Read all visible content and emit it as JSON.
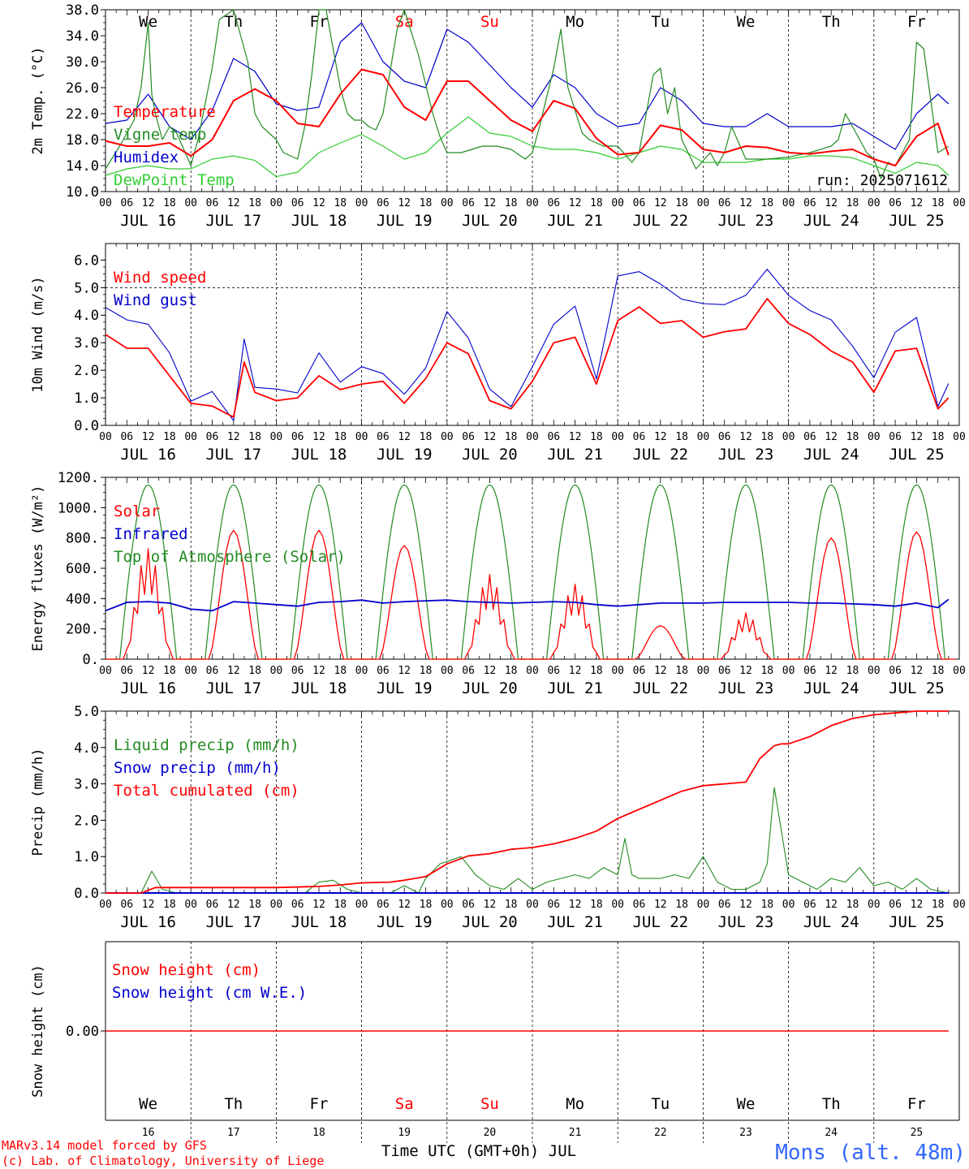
{
  "chart_data": [
    {
      "type": "line",
      "ylabel": "2m Temp. (°C)",
      "ylim": [
        10,
        38
      ],
      "yticks": [
        "38.0",
        "34.0",
        "30.0",
        "26.0",
        "22.0",
        "18.0",
        "14.0",
        "10.0"
      ],
      "x_unit": "hours since JUL 16 00 UTC",
      "weekdays": [
        {
          "label": "We",
          "color": "#000000"
        },
        {
          "label": "Th",
          "color": "#000000"
        },
        {
          "label": "Fr",
          "color": "#000000"
        },
        {
          "label": "Sa",
          "color": "#ff0000"
        },
        {
          "label": "Su",
          "color": "#ff0000"
        },
        {
          "label": "Mo",
          "color": "#000000"
        },
        {
          "label": "Tu",
          "color": "#000000"
        },
        {
          "label": "We",
          "color": "#000000"
        },
        {
          "label": "Th",
          "color": "#000000"
        },
        {
          "label": "Fr",
          "color": "#000000"
        }
      ],
      "annotation": "run: 2025071612",
      "series": [
        {
          "name": "Temperature",
          "color": "#ff0000",
          "x": [
            0,
            6,
            12,
            18,
            24,
            30,
            36,
            42,
            48,
            54,
            60,
            66,
            72,
            78,
            84,
            90,
            96,
            102,
            108,
            114,
            120,
            126,
            132,
            138,
            144,
            150,
            156,
            162,
            168,
            174,
            180,
            186,
            192,
            198,
            204,
            210,
            216,
            222,
            228,
            234,
            237
          ],
          "y": [
            17.8,
            17,
            17,
            17.5,
            15.5,
            18,
            24,
            25.8,
            24,
            20.5,
            20,
            25,
            28.8,
            28,
            23,
            21,
            27,
            27,
            24,
            21,
            19.3,
            24,
            22.8,
            18.2,
            15.7,
            16,
            20.2,
            19.5,
            16.5,
            16,
            17,
            16.8,
            16,
            15.8,
            16.2,
            16.5,
            15,
            14,
            18.5,
            20.5,
            15.6
          ]
        },
        {
          "name": "Vigne temp",
          "color": "#228b22",
          "x": [
            0,
            4,
            8,
            10,
            12,
            13,
            14,
            16,
            18,
            20,
            24,
            26,
            30,
            32,
            36,
            40,
            42,
            44,
            48,
            50,
            54,
            56,
            58,
            60,
            62,
            64,
            66,
            68,
            70,
            72,
            74,
            76,
            78,
            82,
            84,
            88,
            92,
            94,
            96,
            100,
            106,
            110,
            114,
            118,
            120,
            122,
            126,
            128,
            130,
            134,
            136,
            140,
            144,
            148,
            150,
            152,
            154,
            156,
            158,
            160,
            162,
            166,
            170,
            172,
            174,
            176,
            180,
            186,
            192,
            198,
            204,
            206,
            208,
            214,
            216,
            218,
            220,
            222,
            226,
            228,
            230,
            234,
            237
          ],
          "y": [
            13.5,
            17,
            21,
            26,
            36,
            25,
            22,
            18,
            20,
            19,
            14,
            18,
            29,
            36.5,
            38,
            30,
            22,
            20,
            18,
            16,
            15,
            20,
            28,
            38,
            38,
            32,
            26,
            22,
            21,
            21,
            20,
            19.5,
            22,
            35,
            38,
            31,
            22,
            18.5,
            16,
            16,
            17,
            17,
            16.5,
            15,
            16,
            20,
            29,
            35,
            26,
            19,
            18,
            17,
            17,
            14.5,
            16,
            22,
            28,
            29,
            22,
            26,
            18,
            13.5,
            16,
            14,
            16,
            20,
            15,
            15,
            15.3,
            16,
            17,
            18,
            22,
            16,
            15,
            12,
            14.5,
            14,
            18,
            33,
            32,
            16,
            17
          ]
        },
        {
          "name": "Humidex",
          "color": "#0000cd",
          "x": [
            0,
            6,
            12,
            18,
            24,
            30,
            36,
            42,
            48,
            54,
            60,
            66,
            72,
            78,
            84,
            90,
            96,
            102,
            108,
            114,
            120,
            126,
            132,
            138,
            144,
            150,
            156,
            162,
            168,
            174,
            180,
            186,
            192,
            198,
            204,
            210,
            216,
            222,
            228,
            234,
            237
          ],
          "y": [
            20.5,
            21,
            25,
            20,
            18,
            22.5,
            30.5,
            28.5,
            23.5,
            22.5,
            23,
            33,
            36,
            30,
            27,
            26,
            35,
            33,
            29.5,
            26,
            23,
            28,
            26,
            22,
            20,
            20.5,
            26,
            24,
            20.5,
            20,
            20,
            22,
            20,
            20,
            20,
            20.5,
            18.5,
            16.5,
            22,
            25,
            23.5
          ]
        },
        {
          "name": "DewPoint Temp",
          "color": "#32cd32",
          "x": [
            0,
            6,
            12,
            18,
            24,
            30,
            36,
            42,
            48,
            54,
            60,
            66,
            72,
            78,
            84,
            90,
            96,
            102,
            108,
            114,
            120,
            126,
            132,
            138,
            144,
            150,
            156,
            162,
            168,
            174,
            180,
            186,
            192,
            198,
            204,
            210,
            216,
            222,
            228,
            234,
            237
          ],
          "y": [
            12.5,
            13.5,
            14,
            13.5,
            13.5,
            15,
            15.5,
            14.8,
            12.3,
            13,
            16,
            17.5,
            18.8,
            17,
            15,
            16,
            19,
            21.5,
            19,
            18.5,
            17,
            16.5,
            16.5,
            16,
            15,
            16,
            17,
            16.5,
            14.5,
            14.5,
            14.5,
            15,
            15,
            15.5,
            15.5,
            15.2,
            14,
            12.8,
            14.5,
            14,
            12.5
          ]
        }
      ]
    },
    {
      "type": "line",
      "ylabel": "10m Wind (m/s)",
      "ylim": [
        0,
        6.6
      ],
      "yticks": [
        "6.0",
        "5.0",
        "4.0",
        "3.0",
        "2.0",
        "1.0",
        "0.0"
      ],
      "series": [
        {
          "name": "Wind speed",
          "color": "#ff0000",
          "x": [
            0,
            6,
            12,
            18,
            24,
            30,
            36,
            39,
            42,
            48,
            54,
            60,
            66,
            72,
            78,
            84,
            90,
            96,
            102,
            108,
            114,
            120,
            126,
            132,
            138,
            144,
            150,
            156,
            162,
            168,
            174,
            180,
            186,
            192,
            198,
            204,
            210,
            216,
            222,
            228,
            234,
            237
          ],
          "y": [
            3.3,
            2.8,
            2.8,
            1.8,
            0.8,
            0.7,
            0.3,
            2.3,
            1.2,
            0.9,
            1.0,
            1.8,
            1.3,
            1.5,
            1.6,
            0.8,
            1.7,
            3.0,
            2.6,
            0.9,
            0.6,
            1.6,
            3.0,
            3.2,
            1.5,
            3.8,
            4.3,
            3.7,
            3.8,
            3.2,
            3.4,
            3.5,
            4.6,
            3.7,
            3.3,
            2.7,
            2.3,
            1.2,
            2.7,
            2.8,
            0.6,
            1.0
          ]
        },
        {
          "name": "Wind gust",
          "color": "#0000cd",
          "x": [
            0,
            6,
            12,
            18,
            24,
            30,
            36,
            39,
            42,
            48,
            54,
            60,
            66,
            72,
            78,
            84,
            90,
            96,
            102,
            108,
            114,
            120,
            126,
            132,
            138,
            144,
            150,
            156,
            162,
            168,
            174,
            180,
            186,
            192,
            198,
            204,
            210,
            216,
            222,
            228,
            234,
            237
          ],
          "y": [
            4.4,
            3.7,
            3.8,
            2.5,
            1.0,
            1.1,
            0.3,
            3.0,
            1.5,
            1.2,
            1.3,
            2.5,
            1.7,
            2.0,
            2.0,
            1.0,
            2.2,
            4.0,
            3.3,
            1.2,
            0.8,
            2.0,
            3.8,
            4.2,
            1.8,
            5.3,
            5.7,
            5.0,
            4.7,
            4.3,
            4.5,
            4.6,
            5.8,
            4.6,
            4.3,
            3.7,
            3.0,
            1.6,
            3.5,
            3.8,
            0.8,
            1.4
          ]
        }
      ]
    },
    {
      "type": "line",
      "ylabel": "Energy fluxes (W/m²)",
      "ylim": [
        0,
        1200
      ],
      "yticks": [
        "1200.",
        "1000.",
        "800.",
        "600.",
        "400.",
        "200.",
        "0."
      ],
      "series": [
        {
          "name": "Solar",
          "color": "#ff0000",
          "daily_peak": [
            810,
            850,
            850,
            750,
            620,
            550,
            220,
            340,
            800,
            840
          ]
        },
        {
          "name": "Infrared",
          "color": "#0000cd",
          "x": [
            0,
            6,
            12,
            18,
            24,
            30,
            36,
            42,
            48,
            54,
            60,
            66,
            72,
            78,
            84,
            90,
            96,
            102,
            108,
            114,
            120,
            126,
            132,
            138,
            144,
            150,
            156,
            162,
            168,
            174,
            180,
            186,
            192,
            198,
            204,
            210,
            216,
            222,
            228,
            234,
            237
          ],
          "y": [
            320,
            375,
            380,
            370,
            330,
            320,
            380,
            370,
            360,
            350,
            375,
            380,
            390,
            370,
            380,
            385,
            390,
            380,
            375,
            370,
            375,
            380,
            375,
            360,
            350,
            360,
            370,
            370,
            370,
            375,
            375,
            375,
            375,
            370,
            370,
            365,
            360,
            350,
            370,
            340,
            395
          ]
        },
        {
          "name": "Top of Atmosphere (Solar)",
          "color": "#228b22",
          "daily_peak": 1150,
          "sunrise_hour": 4,
          "sunset_hour": 20
        }
      ]
    },
    {
      "type": "line",
      "ylabel": "Precip (mm/h)",
      "ylim": [
        0,
        5
      ],
      "yticks": [
        "5.0",
        "4.0",
        "3.0",
        "2.0",
        "1.0",
        "0.0"
      ],
      "series": [
        {
          "name": "Liquid precip (mm/h)",
          "color": "#228b22",
          "x": [
            0,
            10,
            13,
            16,
            20,
            24,
            48,
            56,
            60,
            64,
            68,
            72,
            76,
            80,
            84,
            88,
            90,
            94,
            100,
            104,
            108,
            112,
            116,
            120,
            124,
            128,
            132,
            136,
            140,
            144,
            146,
            148,
            150,
            152,
            156,
            160,
            164,
            168,
            172,
            176,
            180,
            184,
            186,
            188,
            192,
            196,
            200,
            204,
            208,
            212,
            216,
            220,
            224,
            228,
            232,
            237
          ],
          "y": [
            0,
            0,
            0.6,
            0.1,
            0,
            0,
            0,
            0,
            0.3,
            0.35,
            0.1,
            0,
            0,
            0,
            0.2,
            0,
            0.4,
            0.8,
            1.0,
            0.5,
            0.2,
            0.1,
            0.4,
            0.1,
            0.3,
            0.4,
            0.5,
            0.4,
            0.7,
            0.5,
            1.5,
            0.5,
            0.4,
            0.4,
            0.4,
            0.5,
            0.4,
            1.0,
            0.3,
            0.1,
            0.1,
            0.3,
            0.8,
            2.9,
            0.5,
            0.3,
            0.1,
            0.4,
            0.3,
            0.7,
            0.2,
            0.3,
            0.1,
            0.4,
            0.1,
            0
          ]
        },
        {
          "name": "Snow precip (mm/h)",
          "color": "#0000cd",
          "x": [
            0,
            237
          ],
          "y": [
            0,
            0
          ]
        },
        {
          "name": "Total cumulated (cm)",
          "color": "#ff0000",
          "x": [
            0,
            10,
            14,
            20,
            48,
            60,
            66,
            72,
            80,
            84,
            90,
            96,
            102,
            108,
            114,
            120,
            126,
            132,
            138,
            144,
            150,
            156,
            162,
            168,
            174,
            180,
            184,
            188,
            190,
            192,
            198,
            204,
            210,
            216,
            222,
            228,
            234,
            237
          ],
          "y": [
            0,
            0,
            0.15,
            0.15,
            0.15,
            0.18,
            0.22,
            0.28,
            0.3,
            0.35,
            0.45,
            0.8,
            1.02,
            1.08,
            1.2,
            1.25,
            1.35,
            1.5,
            1.7,
            2.05,
            2.3,
            2.55,
            2.8,
            2.95,
            3.0,
            3.05,
            3.7,
            4.05,
            4.1,
            4.1,
            4.3,
            4.6,
            4.8,
            4.9,
            4.95,
            5.0,
            5.0,
            5.0
          ]
        }
      ]
    },
    {
      "type": "line",
      "ylabel": "Snow height (cm)",
      "ytick": "0.00",
      "xlabel": "Time UTC (GMT+0h) JUL",
      "day_numbers": [
        "16",
        "17",
        "18",
        "19",
        "20",
        "21",
        "22",
        "23",
        "24",
        "25"
      ],
      "series": [
        {
          "name": "Snow height (cm)",
          "color": "#ff0000",
          "x": [
            0,
            237
          ],
          "y": [
            0,
            0
          ]
        },
        {
          "name": "Snow height (cm W.E.)",
          "color": "#0000cd"
        }
      ]
    }
  ],
  "day_labels": [
    "JUL 16",
    "JUL 17",
    "JUL 18",
    "JUL 19",
    "JUL 20",
    "JUL 21",
    "JUL 22",
    "JUL 23",
    "JUL 24",
    "JUL 25"
  ],
  "hour_labels": [
    "00",
    "06",
    "12",
    "18"
  ],
  "final_hour_label": "00",
  "footer": {
    "credit_line1": "MARv3.14 model forced by GFS",
    "credit_line2": "(c) Lab. of Climatology, University of Liege",
    "station": "Mons (alt. 48m)"
  }
}
